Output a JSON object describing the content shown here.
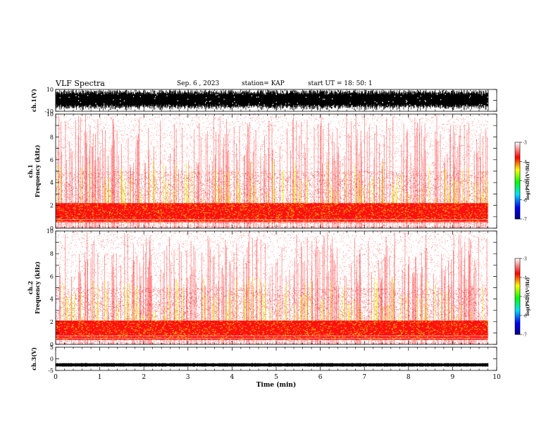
{
  "header": {
    "title": "VLF Spectra",
    "date": "Sep. 6 , 2023",
    "station": "station= KAP",
    "start": "start UT =  18: 50: 1"
  },
  "chart_data": [
    {
      "type": "line",
      "name": "ch1-waveform",
      "ylabel": "ch.1(V)",
      "ylim": [
        -10,
        10
      ],
      "yticks": [
        "10",
        "-10"
      ],
      "xlim": [
        0,
        10
      ],
      "amplitude_fraction": 0.95
    },
    {
      "type": "heatmap",
      "name": "ch1-spectrogram",
      "ylabel_lines": [
        "ch.1",
        "Frequency (kHz)"
      ],
      "ylim": [
        0,
        10
      ],
      "yticks": [
        "0",
        "2",
        "4",
        "6",
        "8",
        "10"
      ],
      "xlim": [
        0,
        9.8
      ],
      "band_kHz": [
        0.5,
        2.2
      ],
      "colorbar": {
        "label": "log(PSD)(V²/Hz)",
        "range": [
          -7,
          -3
        ],
        "ticks": [
          "-3",
          "-4",
          "-5",
          "-6",
          "-7"
        ],
        "colors": [
          "#000080",
          "#0000ff",
          "#00e0ff",
          "#00ff00",
          "#ffff00",
          "#ff0000",
          "#ffffff"
        ]
      }
    },
    {
      "type": "heatmap",
      "name": "ch2-spectrogram",
      "ylabel_lines": [
        "ch.2",
        "Frequency (kHz)"
      ],
      "ylim": [
        0,
        10
      ],
      "yticks": [
        "0",
        "2",
        "4",
        "6",
        "8",
        "10"
      ],
      "xlim": [
        0,
        9.8
      ],
      "band_kHz": [
        0.4,
        2.1
      ],
      "colorbar": {
        "label": "log(PSD)(V²/Hz)",
        "range": [
          -7,
          -3
        ],
        "ticks": [
          "-3",
          "-4",
          "-5",
          "-6",
          "-7"
        ],
        "colors": [
          "#000080",
          "#0000ff",
          "#00e0ff",
          "#00ff00",
          "#ffff00",
          "#ff0000",
          "#ffffff"
        ]
      }
    },
    {
      "type": "line",
      "name": "ch3-waveform",
      "ylabel": "ch.3(V)",
      "ylim": [
        -5,
        5
      ],
      "yticks": [
        "5",
        "0",
        "-5"
      ],
      "xlim": [
        0,
        10
      ],
      "amplitude": 0.8,
      "offset": -2.6,
      "xlabel": "Time (min)",
      "xticks": [
        "0",
        "1",
        "2",
        "3",
        "4",
        "5",
        "6",
        "7",
        "8",
        "9",
        "10"
      ]
    }
  ]
}
